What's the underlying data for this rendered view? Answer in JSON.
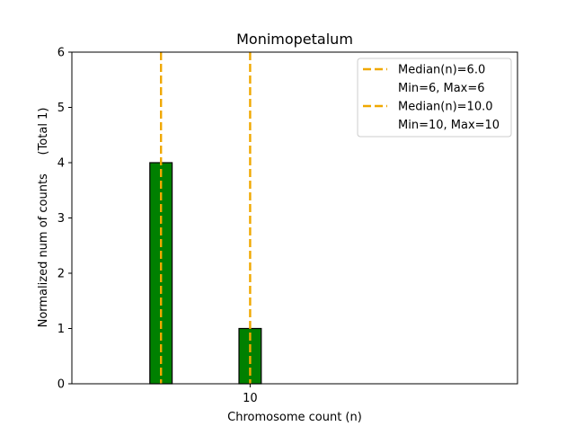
{
  "chart_data": {
    "type": "bar",
    "title": "Monimopetalum",
    "xlabel": "Chromosome count (n)",
    "ylabel": "Normalized num of counts     (Total 1)",
    "xlim": [
      2.0,
      22.0
    ],
    "ylim": [
      0,
      6
    ],
    "yticks": [
      0,
      1,
      2,
      3,
      4,
      5,
      6
    ],
    "xticks": [
      10
    ],
    "bar_width": 1.0,
    "bars": [
      {
        "x": 6,
        "value": 4
      },
      {
        "x": 10,
        "value": 1
      }
    ],
    "medians": [
      {
        "x": 6.0,
        "label": "Median(n)=6.0",
        "range_label": "Min=6, Max=6"
      },
      {
        "x": 10.0,
        "label": "Median(n)=10.0",
        "range_label": "Min=10, Max=10"
      }
    ],
    "legend_position": "top-right",
    "bar_color": "#008000",
    "median_color": "#f0a800"
  }
}
